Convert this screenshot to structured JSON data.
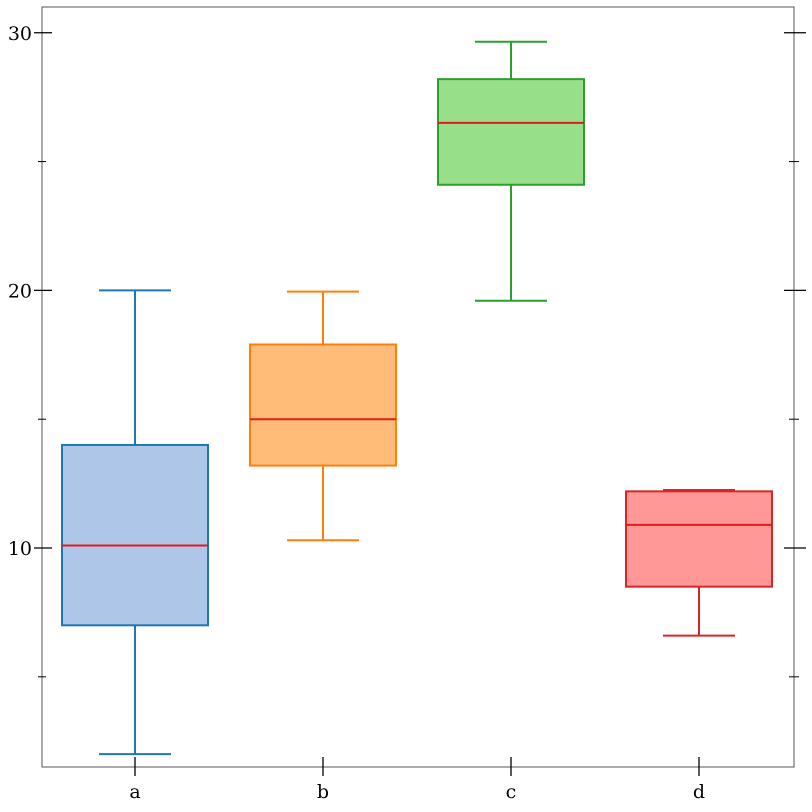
{
  "chart_data": {
    "type": "box",
    "title": "",
    "xlabel": "",
    "ylabel": "",
    "ylim": [
      1.5,
      31
    ],
    "y_ticks_major": [
      10,
      20,
      30
    ],
    "y_ticks_minor": [
      5,
      15,
      25
    ],
    "grid": false,
    "median_color": "#e31a1c",
    "categories": [
      "a",
      "b",
      "c",
      "d"
    ],
    "boxes": [
      {
        "category": "a",
        "whisker_low": 2.0,
        "q1": 7.0,
        "median": 10.1,
        "q3": 14.0,
        "whisker_high": 20.0,
        "stroke": "#1f77b4",
        "fill": "#aec7e8"
      },
      {
        "category": "b",
        "whisker_low": 10.3,
        "q1": 13.2,
        "median": 15.0,
        "q3": 17.9,
        "whisker_high": 19.95,
        "stroke": "#ff7f0e",
        "fill": "#ffbb78"
      },
      {
        "category": "c",
        "whisker_low": 19.6,
        "q1": 24.1,
        "median": 26.5,
        "q3": 28.2,
        "whisker_high": 29.65,
        "stroke": "#2ca02c",
        "fill": "#98df8a"
      },
      {
        "category": "d",
        "whisker_low": 6.6,
        "q1": 8.5,
        "median": 10.9,
        "q3": 12.2,
        "whisker_high": 12.25,
        "stroke": "#d62728",
        "fill": "#ff9896"
      }
    ]
  }
}
